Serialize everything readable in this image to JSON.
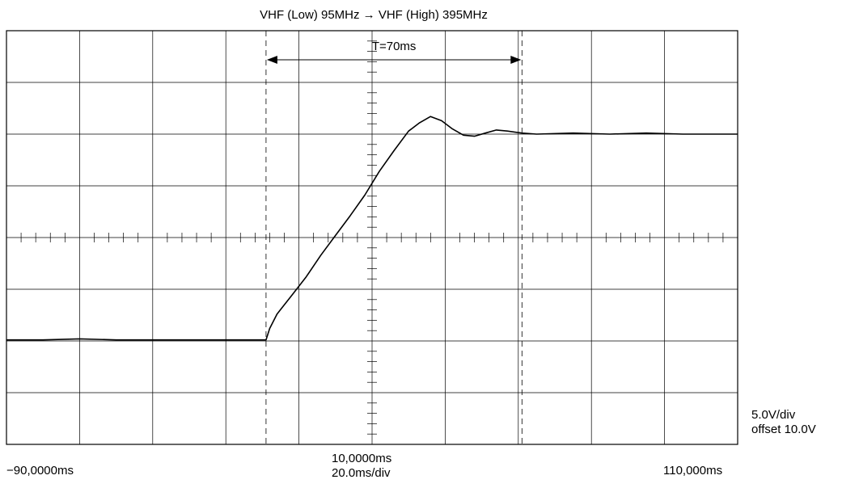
{
  "chart_data": {
    "type": "line",
    "title": "VHF (Low) 95MHz → VHF (High) 395MHz",
    "x_start_label": "−90,0000ms",
    "x_center_label": "10,0000ms",
    "x_end_label": "110,000ms",
    "time_per_div": "20.0ms/div",
    "volts_per_div": "5.0V/div",
    "offset_label": "offset 10.0V",
    "xlim": [
      -90,
      110
    ],
    "ylim": [
      -10,
      30
    ],
    "x_divisions": 10,
    "y_divisions": 8,
    "grid": true,
    "annotation": {
      "label": "T=70ms",
      "x_start": -19,
      "x_end": 51,
      "cursor_style": "dashed"
    },
    "series": [
      {
        "points": [
          [
            -90,
            0.1
          ],
          [
            -80,
            0.1
          ],
          [
            -70,
            0.2
          ],
          [
            -60,
            0.1
          ],
          [
            -50,
            0.1
          ],
          [
            -40,
            0.1
          ],
          [
            -30,
            0.1
          ],
          [
            -19,
            0.1
          ],
          [
            -18,
            1.2
          ],
          [
            -16,
            2.6
          ],
          [
            -12,
            4.4
          ],
          [
            -8,
            6.2
          ],
          [
            -4,
            8.3
          ],
          [
            0,
            10.2
          ],
          [
            4,
            12.1
          ],
          [
            8,
            14.1
          ],
          [
            12,
            16.4
          ],
          [
            16,
            18.4
          ],
          [
            20,
            20.3
          ],
          [
            23,
            21.1
          ],
          [
            26,
            21.7
          ],
          [
            29,
            21.3
          ],
          [
            32,
            20.5
          ],
          [
            35,
            19.9
          ],
          [
            38,
            19.8
          ],
          [
            41,
            20.1
          ],
          [
            44,
            20.4
          ],
          [
            47,
            20.3
          ],
          [
            51,
            20.1
          ],
          [
            55,
            20.0
          ],
          [
            65,
            20.1
          ],
          [
            75,
            20.0
          ],
          [
            85,
            20.1
          ],
          [
            95,
            20.0
          ],
          [
            105,
            20.0
          ],
          [
            110,
            20.0
          ]
        ]
      }
    ]
  }
}
